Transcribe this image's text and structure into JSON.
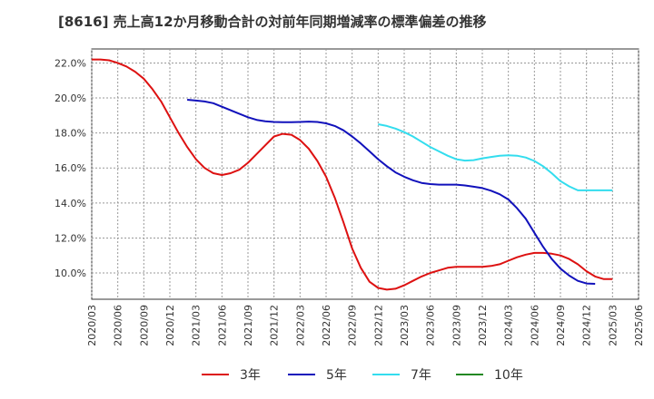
{
  "chart_data": {
    "type": "line",
    "title": "[8616]  売上高12か月移動合計の対前年同期増減率の標準偏差の推移",
    "xlabel": "",
    "ylabel": "",
    "ylim": [
      8.5,
      22.8
    ],
    "yticks": [
      "10.0%",
      "12.0%",
      "14.0%",
      "16.0%",
      "18.0%",
      "20.0%",
      "22.0%"
    ],
    "ytick_values": [
      10,
      12,
      14,
      16,
      18,
      20,
      22
    ],
    "xticks": [
      "2020/03",
      "2020/06",
      "2020/09",
      "2020/12",
      "2021/03",
      "2021/06",
      "2021/09",
      "2021/12",
      "2022/03",
      "2022/06",
      "2022/09",
      "2022/12",
      "2023/03",
      "2023/06",
      "2023/09",
      "2023/12",
      "2024/03",
      "2024/06",
      "2024/09",
      "2024/12",
      "2025/03",
      "2025/06"
    ],
    "grid": true,
    "legend_position": "bottom",
    "series": [
      {
        "name": "3年",
        "color": "#dd1111",
        "points": [
          [
            "2020/03",
            22.2
          ],
          [
            "2020/04",
            22.2
          ],
          [
            "2020/05",
            22.15
          ],
          [
            "2020/06",
            22.0
          ],
          [
            "2020/07",
            21.8
          ],
          [
            "2020/08",
            21.5
          ],
          [
            "2020/09",
            21.1
          ],
          [
            "2020/10",
            20.5
          ],
          [
            "2020/11",
            19.8
          ],
          [
            "2020/12",
            18.9
          ],
          [
            "2021/01",
            18.0
          ],
          [
            "2021/02",
            17.2
          ],
          [
            "2021/03",
            16.5
          ],
          [
            "2021/04",
            16.0
          ],
          [
            "2021/05",
            15.7
          ],
          [
            "2021/06",
            15.6
          ],
          [
            "2021/07",
            15.7
          ],
          [
            "2021/08",
            15.9
          ],
          [
            "2021/09",
            16.3
          ],
          [
            "2021/10",
            16.8
          ],
          [
            "2021/11",
            17.3
          ],
          [
            "2021/12",
            17.8
          ],
          [
            "2022/01",
            17.95
          ],
          [
            "2022/02",
            17.9
          ],
          [
            "2022/03",
            17.6
          ],
          [
            "2022/04",
            17.1
          ],
          [
            "2022/05",
            16.4
          ],
          [
            "2022/06",
            15.5
          ],
          [
            "2022/07",
            14.3
          ],
          [
            "2022/08",
            12.9
          ],
          [
            "2022/09",
            11.4
          ],
          [
            "2022/10",
            10.3
          ],
          [
            "2022/11",
            9.5
          ],
          [
            "2022/12",
            9.15
          ],
          [
            "2023/01",
            9.05
          ],
          [
            "2023/02",
            9.1
          ],
          [
            "2023/03",
            9.3
          ],
          [
            "2023/04",
            9.55
          ],
          [
            "2023/05",
            9.8
          ],
          [
            "2023/06",
            10.0
          ],
          [
            "2023/07",
            10.15
          ],
          [
            "2023/08",
            10.3
          ],
          [
            "2023/09",
            10.35
          ],
          [
            "2023/10",
            10.35
          ],
          [
            "2023/11",
            10.35
          ],
          [
            "2023/12",
            10.35
          ],
          [
            "2024/01",
            10.4
          ],
          [
            "2024/02",
            10.5
          ],
          [
            "2024/03",
            10.7
          ],
          [
            "2024/04",
            10.9
          ],
          [
            "2024/05",
            11.05
          ],
          [
            "2024/06",
            11.15
          ],
          [
            "2024/07",
            11.15
          ],
          [
            "2024/08",
            11.1
          ],
          [
            "2024/09",
            11.0
          ],
          [
            "2024/10",
            10.8
          ],
          [
            "2024/11",
            10.5
          ],
          [
            "2024/12",
            10.1
          ],
          [
            "2025/01",
            9.8
          ],
          [
            "2025/02",
            9.65
          ],
          [
            "2025/03",
            9.65
          ]
        ]
      },
      {
        "name": "5年",
        "color": "#1111bb",
        "points": [
          [
            "2021/02",
            19.9
          ],
          [
            "2021/03",
            19.85
          ],
          [
            "2021/04",
            19.8
          ],
          [
            "2021/05",
            19.7
          ],
          [
            "2021/06",
            19.5
          ],
          [
            "2021/07",
            19.3
          ],
          [
            "2021/08",
            19.1
          ],
          [
            "2021/09",
            18.9
          ],
          [
            "2021/10",
            18.75
          ],
          [
            "2021/11",
            18.67
          ],
          [
            "2021/12",
            18.63
          ],
          [
            "2022/01",
            18.62
          ],
          [
            "2022/02",
            18.62
          ],
          [
            "2022/03",
            18.63
          ],
          [
            "2022/04",
            18.65
          ],
          [
            "2022/05",
            18.63
          ],
          [
            "2022/06",
            18.55
          ],
          [
            "2022/07",
            18.4
          ],
          [
            "2022/08",
            18.15
          ],
          [
            "2022/09",
            17.8
          ],
          [
            "2022/10",
            17.4
          ],
          [
            "2022/11",
            16.95
          ],
          [
            "2022/12",
            16.5
          ],
          [
            "2023/01",
            16.1
          ],
          [
            "2023/02",
            15.75
          ],
          [
            "2023/03",
            15.5
          ],
          [
            "2023/04",
            15.3
          ],
          [
            "2023/05",
            15.15
          ],
          [
            "2023/06",
            15.08
          ],
          [
            "2023/07",
            15.05
          ],
          [
            "2023/08",
            15.05
          ],
          [
            "2023/09",
            15.05
          ],
          [
            "2023/10",
            15.0
          ],
          [
            "2023/11",
            14.93
          ],
          [
            "2023/12",
            14.85
          ],
          [
            "2024/01",
            14.7
          ],
          [
            "2024/02",
            14.5
          ],
          [
            "2024/03",
            14.2
          ],
          [
            "2024/04",
            13.7
          ],
          [
            "2024/05",
            13.1
          ],
          [
            "2024/06",
            12.3
          ],
          [
            "2024/07",
            11.5
          ],
          [
            "2024/08",
            10.8
          ],
          [
            "2024/09",
            10.25
          ],
          [
            "2024/10",
            9.85
          ],
          [
            "2024/11",
            9.55
          ],
          [
            "2024/12",
            9.4
          ],
          [
            "2025/01",
            9.38
          ]
        ]
      },
      {
        "name": "7年",
        "color": "#33ddee",
        "points": [
          [
            "2022/12",
            18.5
          ],
          [
            "2023/01",
            18.4
          ],
          [
            "2023/02",
            18.25
          ],
          [
            "2023/03",
            18.05
          ],
          [
            "2023/04",
            17.8
          ],
          [
            "2023/05",
            17.5
          ],
          [
            "2023/06",
            17.2
          ],
          [
            "2023/07",
            16.95
          ],
          [
            "2023/08",
            16.7
          ],
          [
            "2023/09",
            16.5
          ],
          [
            "2023/10",
            16.42
          ],
          [
            "2023/11",
            16.45
          ],
          [
            "2023/12",
            16.55
          ],
          [
            "2024/01",
            16.63
          ],
          [
            "2024/02",
            16.7
          ],
          [
            "2024/03",
            16.72
          ],
          [
            "2024/04",
            16.7
          ],
          [
            "2024/05",
            16.6
          ],
          [
            "2024/06",
            16.4
          ],
          [
            "2024/07",
            16.1
          ],
          [
            "2024/08",
            15.7
          ],
          [
            "2024/09",
            15.25
          ],
          [
            "2024/10",
            14.95
          ],
          [
            "2024/11",
            14.72
          ],
          [
            "2025/03",
            14.72
          ]
        ]
      },
      {
        "name": "10年",
        "color": "#228822",
        "points": []
      }
    ]
  }
}
